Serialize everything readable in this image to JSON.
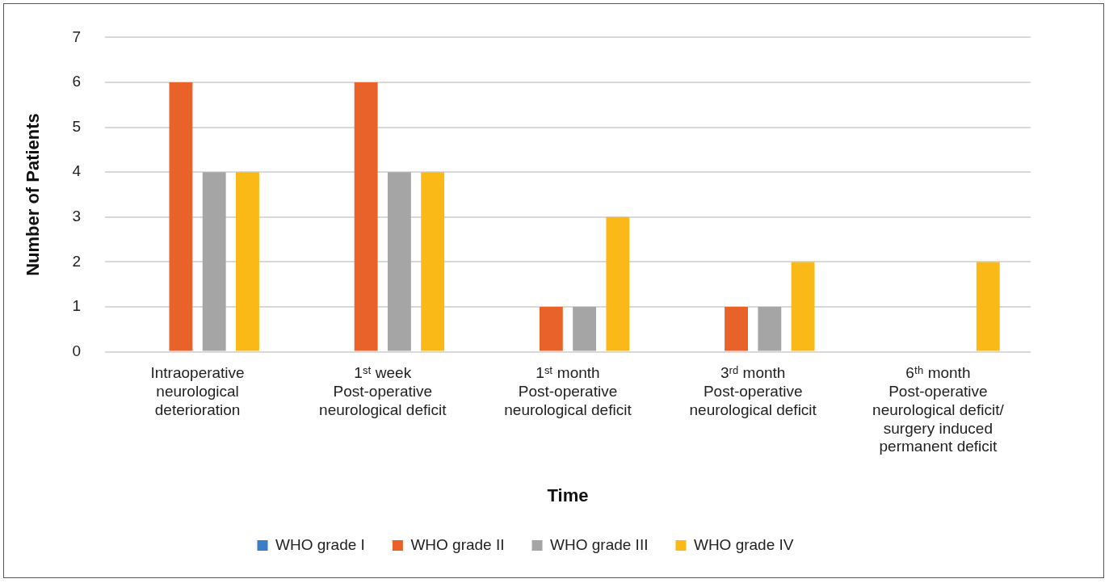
{
  "chart_data": {
    "type": "bar",
    "xlabel": "Time",
    "ylabel": "Number of Patients",
    "categories": [
      "Intraoperative neurological deterioration",
      "1ˢᵗ week Post-operative neurological deficit",
      "1ˢᵗ month Post-operative neurological deficit",
      "3ʳᵈ month Post-operative neurological deficit",
      "6ᵗʰ month Post-operative neurological deficit/ surgery induced permanent deficit"
    ],
    "series": [
      {
        "name": "WHO grade I",
        "color": "#3a7dc9",
        "values": [
          0,
          0,
          0,
          0,
          0
        ]
      },
      {
        "name": "WHO grade II",
        "color": "#e9622a",
        "values": [
          6,
          6,
          1,
          1,
          0
        ]
      },
      {
        "name": "WHO grade III",
        "color": "#a5a5a5",
        "values": [
          4,
          4,
          1,
          1,
          0
        ]
      },
      {
        "name": "WHO grade IV",
        "color": "#fbb917",
        "values": [
          4,
          4,
          3,
          2,
          2
        ]
      }
    ],
    "ylim": [
      0,
      7
    ],
    "yticks": [
      0,
      1,
      2,
      3,
      4,
      5,
      6,
      7
    ],
    "grid": "y",
    "legend": "bottom"
  }
}
